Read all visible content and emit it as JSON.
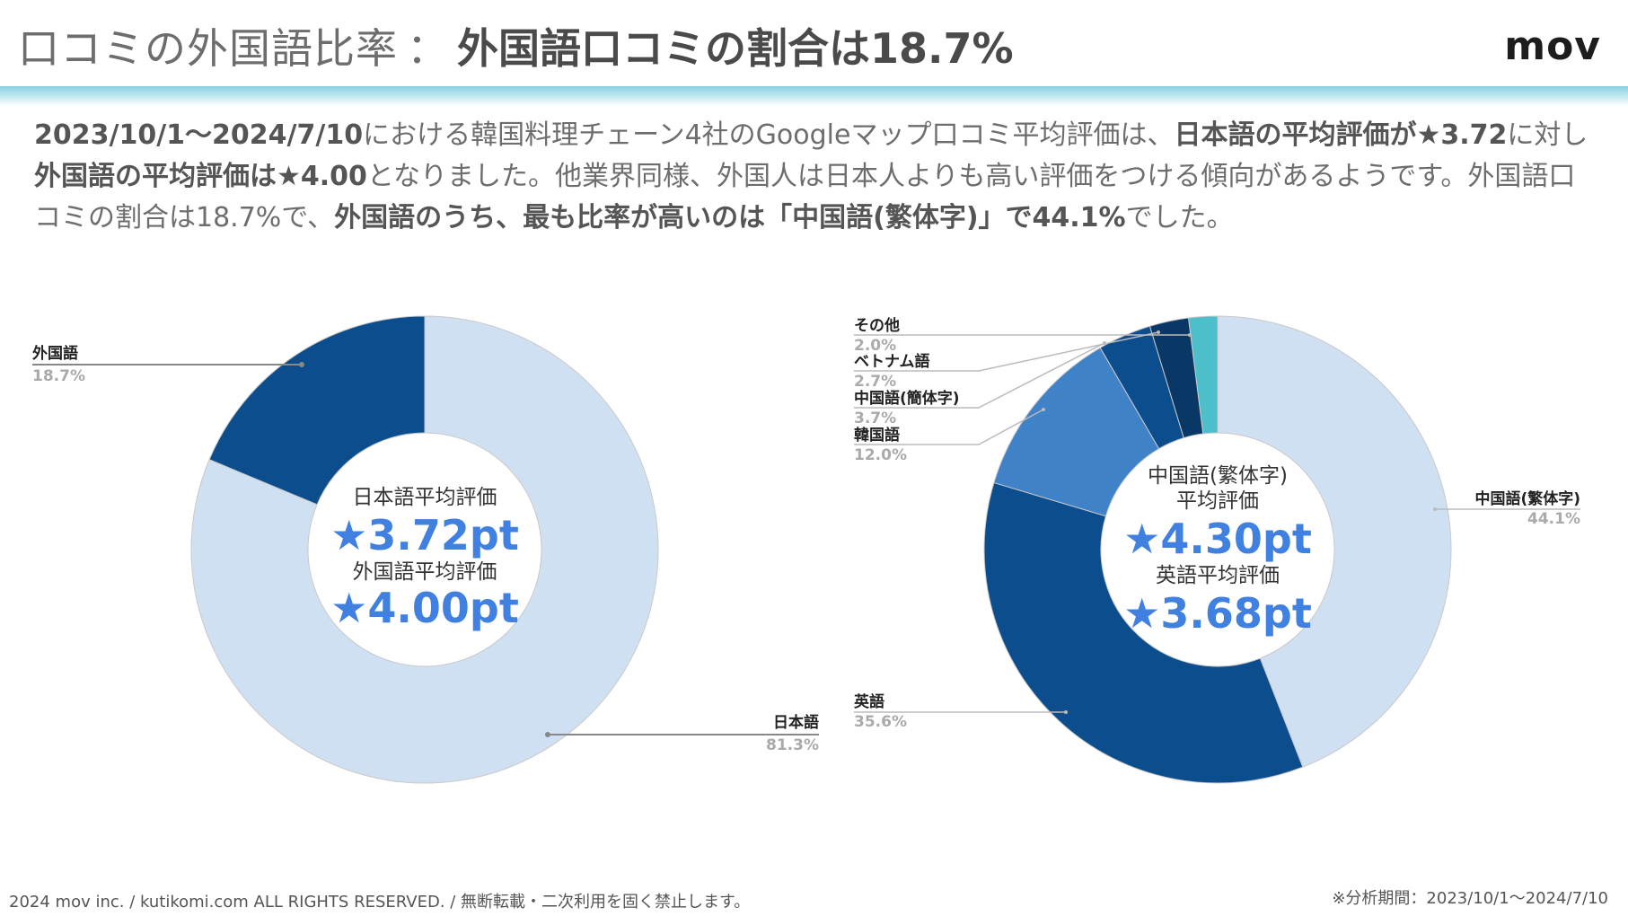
{
  "header": {
    "title_light": "口コミの外国語比率",
    "title_sep": "：",
    "title_bold": "外国語口コミの割合は18.7%",
    "logo": "mov"
  },
  "summary": {
    "p1": "2023/10/1〜2024/7/10",
    "p2": "における韓国料理チェーン4社のGoogleマップ口コミ平均評価は、",
    "p3": "日本語の平均評価が★3.72",
    "p4": "に対し",
    "p5": "外国語の平均評価は★4.00",
    "p6": "となりました。他業界同様、外国人は日本人よりも高い評価をつける傾向があるようです。外国語口コミの割合は18.7%で、",
    "p7": "外国語のうち、最も比率が高いのは「中国語(繁体字)」で44.1%",
    "p8": "でした。"
  },
  "colors": {
    "light_blue": "#cfe0f2",
    "dark_blue": "#0c4d8e",
    "mid_blue": "#3f82c8",
    "deep_blue": "#0a3866",
    "teal": "#4cbfcb",
    "accent_text": "#3f80e0"
  },
  "chart_data": [
    {
      "type": "pie",
      "subtype": "donut",
      "categories": [
        "外国語",
        "日本語"
      ],
      "values": [
        18.7,
        81.3
      ],
      "value_labels": [
        "18.7%",
        "81.3%"
      ],
      "colors": [
        "#0c4d8e",
        "#cfe0f2"
      ],
      "center": {
        "label1": "日本語平均評価",
        "value1": "★3.72pt",
        "label2": "外国語平均評価",
        "value2": "★4.00pt"
      }
    },
    {
      "type": "pie",
      "subtype": "donut",
      "categories": [
        "中国語(繁体字)",
        "英語",
        "韓国語",
        "中国語(簡体字)",
        "ベトナム語",
        "その他"
      ],
      "values": [
        44.1,
        35.6,
        12.0,
        3.7,
        2.7,
        2.0
      ],
      "value_labels": [
        "44.1%",
        "35.6%",
        "12.0%",
        "3.7%",
        "2.7%",
        "2.0%"
      ],
      "colors": [
        "#cfe0f2",
        "#0c4d8e",
        "#3f82c8",
        "#0c4d8e",
        "#0a3866",
        "#4cbfcb"
      ],
      "center": {
        "label1a": "中国語(繁体字)",
        "label1b": "平均評価",
        "value1": "★4.30pt",
        "label2": "英語平均評価",
        "value2": "★3.68pt"
      }
    }
  ],
  "footer": {
    "left": "2024 mov inc. / kutikomi.com ALL RIGHTS RESERVED. / 無断転載・二次利用を固く禁止します。",
    "right": "※分析期間：2023/10/1〜2024/7/10"
  }
}
